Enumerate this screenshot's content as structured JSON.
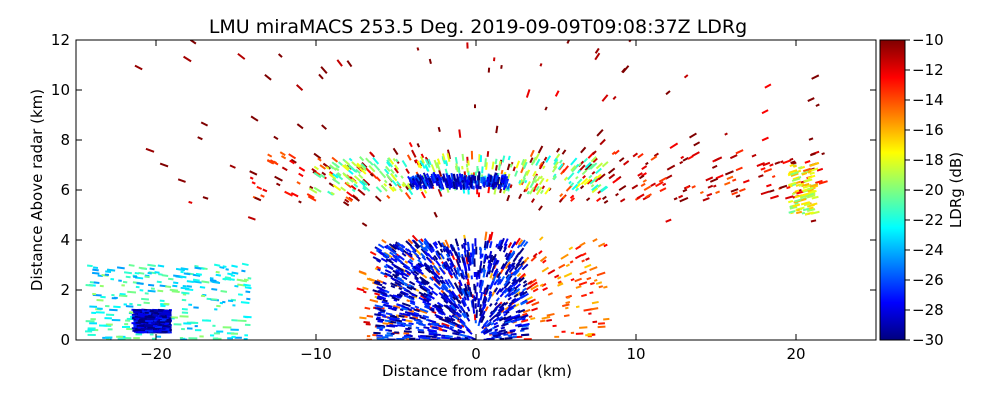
{
  "chart_data": {
    "type": "heatmap",
    "title": "LMU miraMACS 253.5 Deg. 2019-09-09T09:08:37Z  LDRg",
    "xlabel": "Distance from radar (km)",
    "ylabel": "Distance Above radar  (km)",
    "xlim": [
      -25,
      25
    ],
    "ylim": [
      0,
      12
    ],
    "x_ticks": [
      -20,
      -10,
      0,
      10,
      20
    ],
    "x_tick_labels": [
      "−20",
      "−10",
      "0",
      "10",
      "20"
    ],
    "y_ticks": [
      0,
      2,
      4,
      6,
      8,
      10,
      12
    ],
    "y_tick_labels": [
      "0",
      "2",
      "4",
      "6",
      "8",
      "10",
      "12"
    ],
    "grid": false,
    "colorbar": {
      "label": "LDRg (dB)",
      "range": [
        -30,
        -10
      ],
      "ticks": [
        -30,
        -28,
        -26,
        -24,
        -22,
        -20,
        -18,
        -16,
        -14,
        -12,
        -10
      ],
      "tick_labels": [
        "−30",
        "−28",
        "−26",
        "−24",
        "−22",
        "−20",
        "−18",
        "−16",
        "−14",
        "−12",
        "−10"
      ],
      "colormap": "jet",
      "colors": [
        "#00007f",
        "#0000ff",
        "#007fff",
        "#00ffff",
        "#7fff7f",
        "#ffff00",
        "#ff7f00",
        "#ff0000",
        "#7f0000"
      ]
    },
    "regions": [
      {
        "x": [
          -22,
          22
        ],
        "y": [
          4.5,
          12
        ],
        "ldr": -10,
        "density": "sparse"
      },
      {
        "x": [
          -14,
          22
        ],
        "y": [
          5.5,
          7.5
        ],
        "ldr": -12,
        "density": "medium"
      },
      {
        "x": [
          -10,
          8
        ],
        "y": [
          5.8,
          7.2
        ],
        "ldr": -20,
        "density": "medium"
      },
      {
        "x": [
          -4,
          2
        ],
        "y": [
          6.0,
          6.4
        ],
        "ldr": -28,
        "density": "medium"
      },
      {
        "x": [
          -7,
          8
        ],
        "y": [
          0,
          4
        ],
        "ldr": -14,
        "density": "medium"
      },
      {
        "x": [
          -6,
          3
        ],
        "y": [
          0,
          3.8
        ],
        "ldr": -28,
        "density": "dense"
      },
      {
        "x": [
          -24,
          -14
        ],
        "y": [
          0,
          3
        ],
        "ldr": -22,
        "density": "medium"
      },
      {
        "x": [
          -21,
          -19
        ],
        "y": [
          0.3,
          1.2
        ],
        "ldr": -29,
        "density": "dense"
      },
      {
        "x": [
          19.5,
          21
        ],
        "y": [
          5,
          7
        ],
        "ldr": -18,
        "density": "sparse"
      }
    ]
  }
}
